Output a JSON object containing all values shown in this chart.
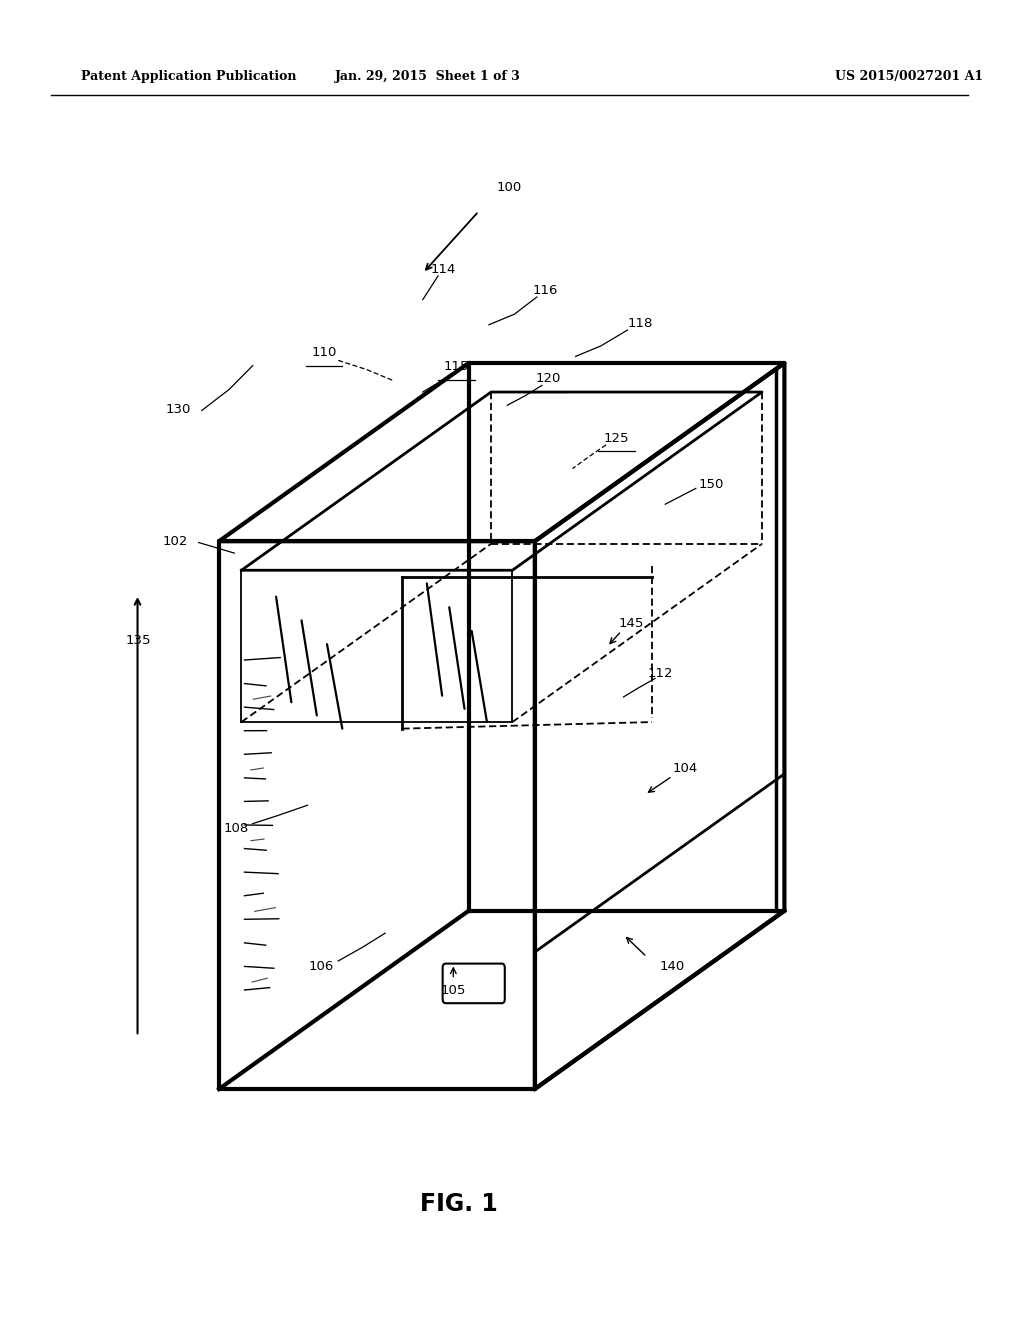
{
  "header_left": "Patent Application Publication",
  "header_mid": "Jan. 29, 2015  Sheet 1 of 3",
  "header_right": "US 2015/0027201 A1",
  "figure_label": "FIG. 1",
  "bg_color": "#ffffff",
  "line_color": "#000000",
  "underlined_labels": [
    "110",
    "115",
    "120",
    "125"
  ]
}
